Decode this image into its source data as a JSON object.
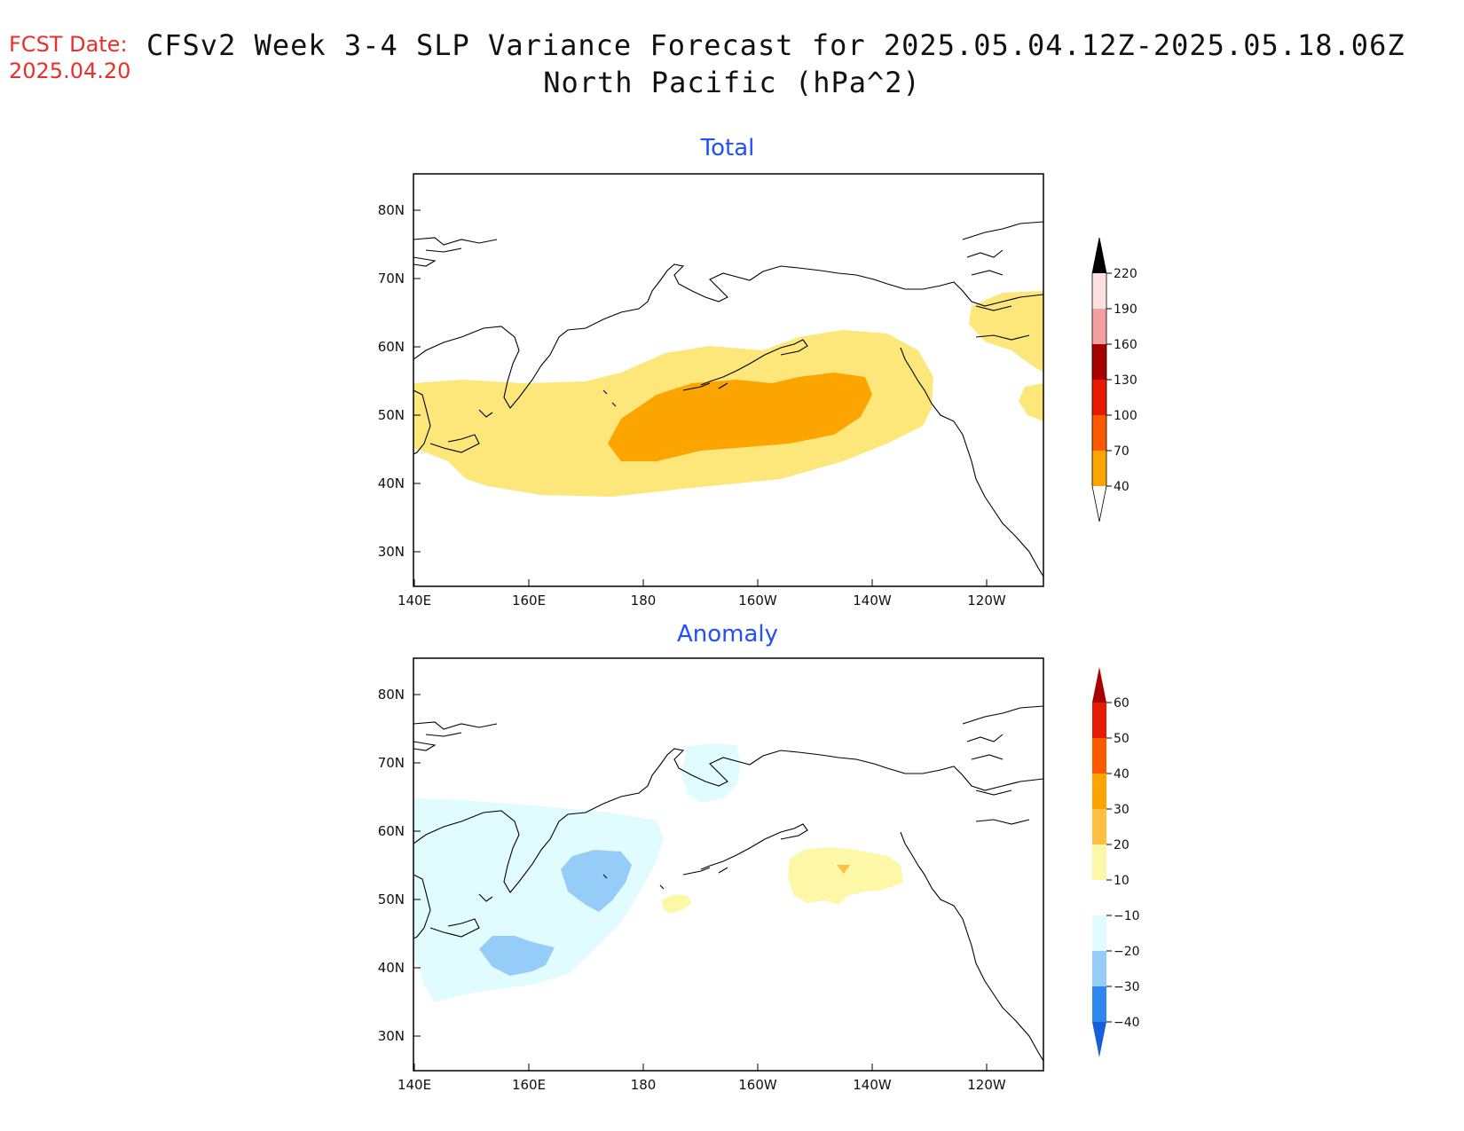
{
  "header": {
    "fcst_label": "FCST Date:",
    "fcst_date": "2025.04.20",
    "title_line1": "CFSv2 Week 3-4 SLP Variance Forecast for 2025.05.04.12Z-2025.05.18.06Z",
    "title_line2": "North Pacific (hPa^2)"
  },
  "panels": [
    {
      "title": "Total",
      "lat_labels": [
        "80N",
        "70N",
        "60N",
        "50N",
        "40N",
        "30N"
      ],
      "lon_labels": [
        "140E",
        "160E",
        "180",
        "160W",
        "140W",
        "120W"
      ],
      "colorbar": {
        "levels": [
          "40",
          "70",
          "100",
          "130",
          "160",
          "190",
          "220"
        ],
        "colors": [
          "#fde67a",
          "#fca400",
          "#fc5a00",
          "#e51a00",
          "#a60000",
          "#f4a0a0",
          "#fde0e0"
        ]
      }
    },
    {
      "title": "Anomaly",
      "lat_labels": [
        "80N",
        "70N",
        "60N",
        "50N",
        "40N",
        "30N"
      ],
      "lon_labels": [
        "140E",
        "160E",
        "180",
        "160W",
        "140W",
        "120W"
      ],
      "colorbar": {
        "levels": [
          "−40",
          "−30",
          "−20",
          "−10",
          "10",
          "20",
          "30",
          "40",
          "50",
          "60"
        ],
        "colors": [
          "#1560d8",
          "#2e86ee",
          "#96cdf8",
          "#e0fcfe",
          "#ffffff",
          "#fdf8a8",
          "#fdc040",
          "#fca400",
          "#fc5a00",
          "#e51a00",
          "#a60000"
        ]
      }
    }
  ]
}
